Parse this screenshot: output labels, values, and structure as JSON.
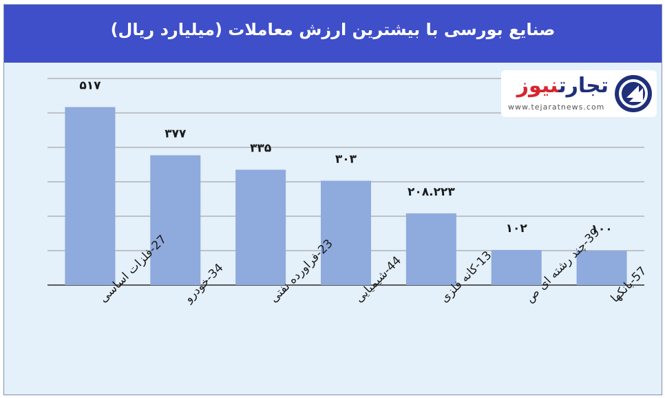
{
  "header": {
    "title": "صنایع بورسی با بیشترین ارزش معاملات  (میلیارد ریال)"
  },
  "logo": {
    "name_part1": "نیوز",
    "name_part2": "تجارت",
    "url": "www.tejaratnews.com"
  },
  "colors": {
    "header_bg": "#3e4fc9",
    "bar": "#8faadc",
    "plot_bg": "#e4f0fa",
    "grid": "#a6a6a6"
  },
  "chart_data": {
    "type": "bar",
    "title": "صنایع بورسی با بیشترین ارزش معاملات  (میلیارد ریال)",
    "categories": [
      "27-فلزات اساسی",
      "34-خودرو",
      "23-فراورده نفتی",
      "44-شیمیایی",
      "13-کانه فلزی",
      "39-چند رشته ای ص",
      "57-بانکها"
    ],
    "values": [
      517,
      377,
      335,
      303,
      208.223,
      102,
      100
    ],
    "value_labels": [
      "۵۱۷",
      "۳۷۷",
      "۳۳۵",
      "۳۰۳",
      "۲۰۸.۲۲۳",
      "۱۰۲",
      "۱۰۰"
    ],
    "ylim": [
      0,
      600
    ],
    "grid": true,
    "legend": "none"
  }
}
